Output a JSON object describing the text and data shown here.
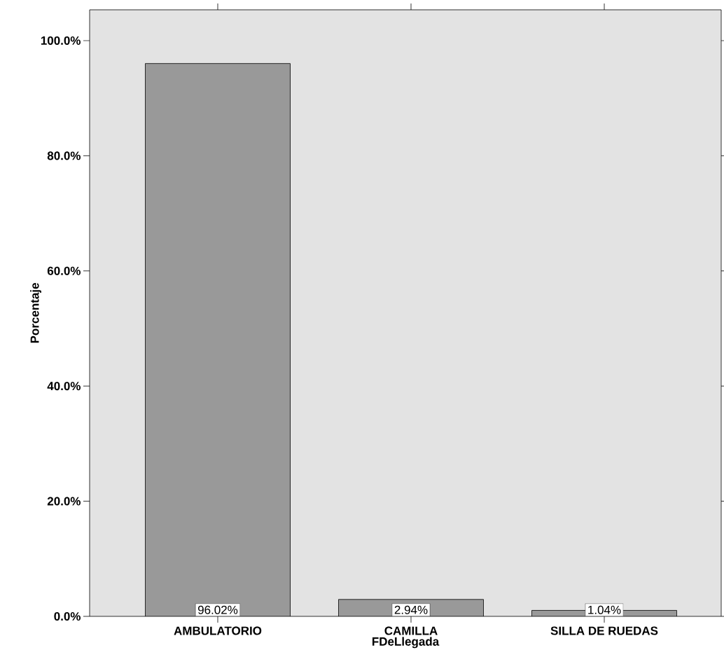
{
  "chart_data": {
    "type": "bar",
    "xlabel": "FDeLlegada",
    "ylabel": "Porcentaje",
    "categories": [
      "AMBULATORIO",
      "CAMILLA",
      "SILLA DE RUEDAS"
    ],
    "values": [
      96.02,
      2.94,
      1.04
    ],
    "value_labels": [
      "96.02%",
      "2.94%",
      "1.04%"
    ],
    "color": "#999999",
    "ylim": [
      0,
      105.35
    ],
    "yticks": [
      {
        "value": 0,
        "label": "0.0%"
      },
      {
        "value": 20,
        "label": "20.0%"
      },
      {
        "value": 40,
        "label": "40.0%"
      },
      {
        "value": 60,
        "label": "60.0%"
      },
      {
        "value": 80,
        "label": "80.0%"
      },
      {
        "value": 100,
        "label": "100.0%"
      }
    ]
  }
}
